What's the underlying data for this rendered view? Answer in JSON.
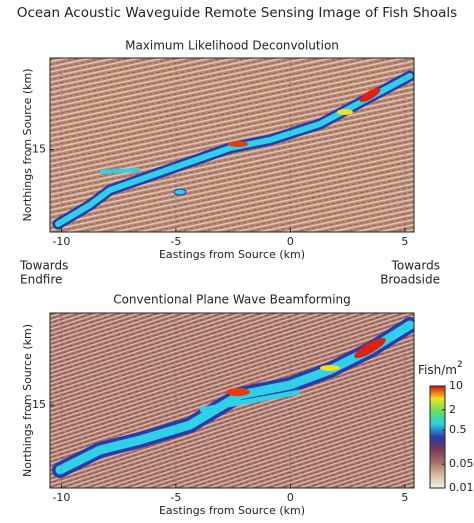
{
  "title": "Ocean Acoustic Waveguide Remote Sensing Image of Fish Shoals",
  "chart_data": [
    {
      "type": "heatmap",
      "title": "Maximum Likelihood Deconvolution",
      "x_label": "Eastings from Source (km)",
      "y_label": "Northings from Source (km)",
      "xlim": [
        -10.5,
        5.4
      ],
      "xticks": [
        -10,
        -5,
        0,
        5
      ],
      "ylim": [
        -18.6,
        -11.0
      ],
      "yticks": [
        -15
      ],
      "annotations": [
        [
          "Towards",
          "Endfire"
        ],
        [
          "Towards",
          "Broadside"
        ]
      ]
    },
    {
      "type": "heatmap",
      "title": "Conventional Plane Wave Beamforming",
      "x_label": "Eastings from Source (km)",
      "y_label": "Northings from Source (km)",
      "xlim": [
        -10.5,
        5.4
      ],
      "xticks": [
        -10,
        -5,
        0,
        5
      ],
      "ylim": [
        -18.6,
        -11.0
      ],
      "yticks": [
        -15
      ],
      "colorbar": {
        "label": "Fish/m",
        "label_superscript": "2",
        "log_scale": true,
        "lim": [
          0.01,
          10
        ],
        "ticks": [
          10,
          2,
          0.5,
          0.05,
          0.01
        ],
        "colors": [
          "#f6f0e2",
          "#d8bca0",
          "#a8706a",
          "#7a3a55",
          "#2a3aa8",
          "#2ad0e8",
          "#60e060",
          "#f0e020",
          "#d81010"
        ]
      }
    }
  ]
}
